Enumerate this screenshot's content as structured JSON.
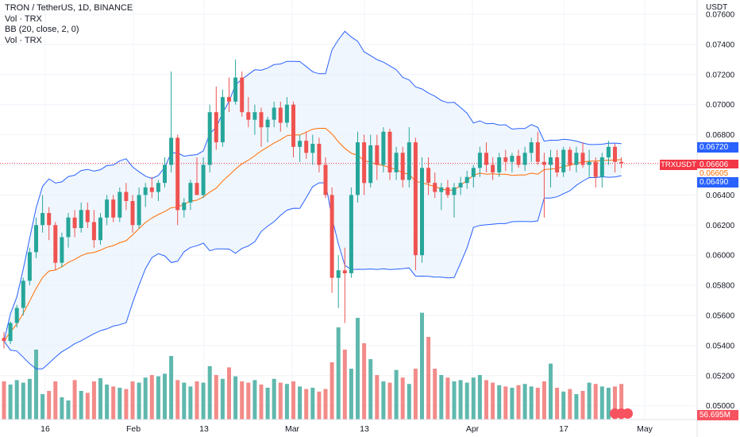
{
  "header": {
    "title": "TRON / TetherUS, 1D, BINANCE",
    "indicators": [
      "Vol · TRX",
      "BB (20, close, 2, 0)",
      "Vol · TRX"
    ]
  },
  "axis": {
    "currency": "USDT",
    "y_ticks": [
      "0.07600",
      "0.07400",
      "0.07200",
      "0.07000",
      "0.06800",
      "0.06600",
      "0.06400",
      "0.06200",
      "0.06000",
      "0.05800",
      "0.05600",
      "0.05400",
      "0.05200",
      "0.05000"
    ],
    "x_ticks": [
      "16",
      "Feb",
      "13",
      "Mar",
      "13",
      "Apr",
      "17",
      "May"
    ]
  },
  "price_tags": {
    "symbol": "TRXUSDT",
    "bb_upper": "0.06720",
    "last": "0.06606",
    "bb_basis": "0.06605",
    "bb_lower": "0.06490",
    "volume": "56.695M"
  },
  "colors": {
    "up": "#26a69a",
    "down": "#ef5350",
    "vol_up": "#5fb8ad",
    "vol_down": "#f28b89",
    "bb_band": "#2962ff",
    "bb_basis": "#ff6d00",
    "bb_fill": "#e3effd",
    "last_price": "#f23645",
    "upper_tag": "#2962ff",
    "basis_tag": "#ff6d00"
  },
  "chart_data": {
    "type": "candlestick",
    "title": "TRON / TetherUS, 1D, BINANCE",
    "ylim": [
      0.05,
      0.076
    ],
    "series": [
      {
        "name": "price",
        "ohlc": [
          [
            0.0545,
            0.0549,
            0.0538,
            0.0543
          ],
          [
            0.0543,
            0.0556,
            0.0541,
            0.0555
          ],
          [
            0.0555,
            0.0567,
            0.0552,
            0.0565
          ],
          [
            0.0565,
            0.0585,
            0.056,
            0.0583
          ],
          [
            0.0583,
            0.0605,
            0.058,
            0.0602
          ],
          [
            0.0602,
            0.0625,
            0.0598,
            0.062
          ],
          [
            0.062,
            0.064,
            0.0615,
            0.0628
          ],
          [
            0.0628,
            0.0632,
            0.061,
            0.062
          ],
          [
            0.062,
            0.0622,
            0.059,
            0.0595
          ],
          [
            0.0595,
            0.0615,
            0.0592,
            0.0612
          ],
          [
            0.0612,
            0.0628,
            0.0605,
            0.0625
          ],
          [
            0.0625,
            0.063,
            0.0612,
            0.0618
          ],
          [
            0.0618,
            0.0635,
            0.0615,
            0.063
          ],
          [
            0.063,
            0.0635,
            0.0618,
            0.0622
          ],
          [
            0.0622,
            0.063,
            0.0605,
            0.061
          ],
          [
            0.061,
            0.0628,
            0.0607,
            0.0625
          ],
          [
            0.0625,
            0.064,
            0.062,
            0.0637
          ],
          [
            0.0637,
            0.064,
            0.0622,
            0.0625
          ],
          [
            0.0625,
            0.0645,
            0.0622,
            0.0642
          ],
          [
            0.0642,
            0.0648,
            0.063,
            0.0636
          ],
          [
            0.0636,
            0.064,
            0.0615,
            0.062
          ],
          [
            0.062,
            0.0645,
            0.0618,
            0.064
          ],
          [
            0.064,
            0.0648,
            0.0632,
            0.0645
          ],
          [
            0.0645,
            0.0652,
            0.0638,
            0.0642
          ],
          [
            0.0642,
            0.065,
            0.0636,
            0.0648
          ],
          [
            0.0648,
            0.0665,
            0.0645,
            0.066
          ],
          [
            0.066,
            0.0722,
            0.0655,
            0.0678
          ],
          [
            0.0678,
            0.068,
            0.062,
            0.063
          ],
          [
            0.063,
            0.0638,
            0.0625,
            0.0635
          ],
          [
            0.0635,
            0.065,
            0.063,
            0.0648
          ],
          [
            0.0648,
            0.0665,
            0.064,
            0.064
          ],
          [
            0.064,
            0.0665,
            0.0638,
            0.066
          ],
          [
            0.066,
            0.07,
            0.0655,
            0.0695
          ],
          [
            0.0695,
            0.0712,
            0.067,
            0.0675
          ],
          [
            0.0675,
            0.071,
            0.0672,
            0.0705
          ],
          [
            0.0705,
            0.0718,
            0.0695,
            0.0702
          ],
          [
            0.0702,
            0.073,
            0.07,
            0.0718
          ],
          [
            0.0718,
            0.0722,
            0.0692,
            0.0695
          ],
          [
            0.0695,
            0.0705,
            0.0685,
            0.069
          ],
          [
            0.069,
            0.07,
            0.068,
            0.0695
          ],
          [
            0.0695,
            0.0698,
            0.0672,
            0.0685
          ],
          [
            0.0685,
            0.0692,
            0.0675,
            0.069
          ],
          [
            0.069,
            0.0702,
            0.0685,
            0.0698
          ],
          [
            0.0698,
            0.0702,
            0.0682,
            0.0688
          ],
          [
            0.0688,
            0.0705,
            0.0685,
            0.07
          ],
          [
            0.07,
            0.0702,
            0.0665,
            0.0672
          ],
          [
            0.0672,
            0.068,
            0.0662,
            0.0676
          ],
          [
            0.0676,
            0.0682,
            0.0664,
            0.0668
          ],
          [
            0.0668,
            0.068,
            0.066,
            0.0674
          ],
          [
            0.0674,
            0.0678,
            0.0655,
            0.066
          ],
          [
            0.066,
            0.0665,
            0.0638,
            0.064
          ],
          [
            0.064,
            0.0645,
            0.0575,
            0.0585
          ],
          [
            0.0585,
            0.06,
            0.0565,
            0.059
          ],
          [
            0.059,
            0.0605,
            0.0555,
            0.0588
          ],
          [
            0.0588,
            0.0645,
            0.0585,
            0.064
          ],
          [
            0.064,
            0.0682,
            0.0635,
            0.0675
          ],
          [
            0.0675,
            0.068,
            0.064,
            0.0648
          ],
          [
            0.0648,
            0.068,
            0.0645,
            0.0673
          ],
          [
            0.0673,
            0.068,
            0.065,
            0.066
          ],
          [
            0.066,
            0.0685,
            0.0655,
            0.0682
          ],
          [
            0.0682,
            0.0684,
            0.065,
            0.0655
          ],
          [
            0.0655,
            0.0672,
            0.065,
            0.0668
          ],
          [
            0.0668,
            0.0672,
            0.0645,
            0.065
          ],
          [
            0.065,
            0.0685,
            0.0645,
            0.0675
          ],
          [
            0.0675,
            0.0678,
            0.059,
            0.06
          ],
          [
            0.06,
            0.0665,
            0.0595,
            0.0658
          ],
          [
            0.0658,
            0.0665,
            0.064,
            0.0648
          ],
          [
            0.0648,
            0.0655,
            0.0638,
            0.0642
          ],
          [
            0.0642,
            0.0648,
            0.063,
            0.0645
          ],
          [
            0.0645,
            0.065,
            0.0638,
            0.064
          ],
          [
            0.064,
            0.0648,
            0.0625,
            0.0645
          ],
          [
            0.0645,
            0.0652,
            0.064,
            0.0648
          ],
          [
            0.0648,
            0.0656,
            0.0644,
            0.0652
          ],
          [
            0.0652,
            0.066,
            0.0645,
            0.0658
          ],
          [
            0.0658,
            0.0672,
            0.0652,
            0.0668
          ],
          [
            0.0668,
            0.0675,
            0.0655,
            0.066
          ],
          [
            0.066,
            0.0665,
            0.065,
            0.0655
          ],
          [
            0.0655,
            0.0668,
            0.0652,
            0.0665
          ],
          [
            0.0665,
            0.067,
            0.0656,
            0.0662
          ],
          [
            0.0662,
            0.0668,
            0.0655,
            0.0666
          ],
          [
            0.0666,
            0.067,
            0.0658,
            0.066
          ],
          [
            0.066,
            0.0672,
            0.0656,
            0.0668
          ],
          [
            0.0668,
            0.0678,
            0.0662,
            0.0675
          ],
          [
            0.0675,
            0.0682,
            0.066,
            0.0662
          ],
          [
            0.0662,
            0.0668,
            0.0625,
            0.066
          ],
          [
            0.066,
            0.067,
            0.0645,
            0.0665
          ],
          [
            0.0665,
            0.067,
            0.0652,
            0.0655
          ],
          [
            0.0655,
            0.0672,
            0.0652,
            0.067
          ],
          [
            0.067,
            0.0672,
            0.0656,
            0.066
          ],
          [
            0.066,
            0.0672,
            0.0655,
            0.0668
          ],
          [
            0.0668,
            0.0675,
            0.0658,
            0.066
          ],
          [
            0.066,
            0.067,
            0.0652,
            0.0662
          ],
          [
            0.0662,
            0.0665,
            0.0645,
            0.0652
          ],
          [
            0.0652,
            0.0668,
            0.0645,
            0.0665
          ],
          [
            0.0665,
            0.0676,
            0.066,
            0.0672
          ],
          [
            0.0672,
            0.0674,
            0.0655,
            0.0662
          ],
          [
            0.0662,
            0.0665,
            0.0658,
            0.0661
          ]
        ]
      },
      {
        "name": "volume",
        "values_M": [
          60,
          55,
          62,
          58,
          64,
          110,
          40,
          45,
          60,
          35,
          30,
          62,
          45,
          42,
          60,
          65,
          55,
          52,
          50,
          48,
          60,
          58,
          66,
          70,
          68,
          72,
          100,
          62,
          58,
          52,
          60,
          58,
          84,
          70,
          64,
          82,
          68,
          60,
          58,
          62,
          55,
          50,
          64,
          58,
          56,
          60,
          52,
          48,
          50,
          44,
          48,
          90,
          145,
          110,
          80,
          160,
          120,
          95,
          70,
          60,
          58,
          78,
          66,
          56,
          80,
          168,
          130,
          80,
          70,
          66,
          60,
          62,
          58,
          66,
          70,
          62,
          58,
          54,
          52,
          50,
          54,
          56,
          52,
          50,
          60,
          88,
          50,
          44,
          48,
          40,
          45,
          58,
          56,
          52,
          50,
          52,
          56
        ]
      }
    ]
  }
}
